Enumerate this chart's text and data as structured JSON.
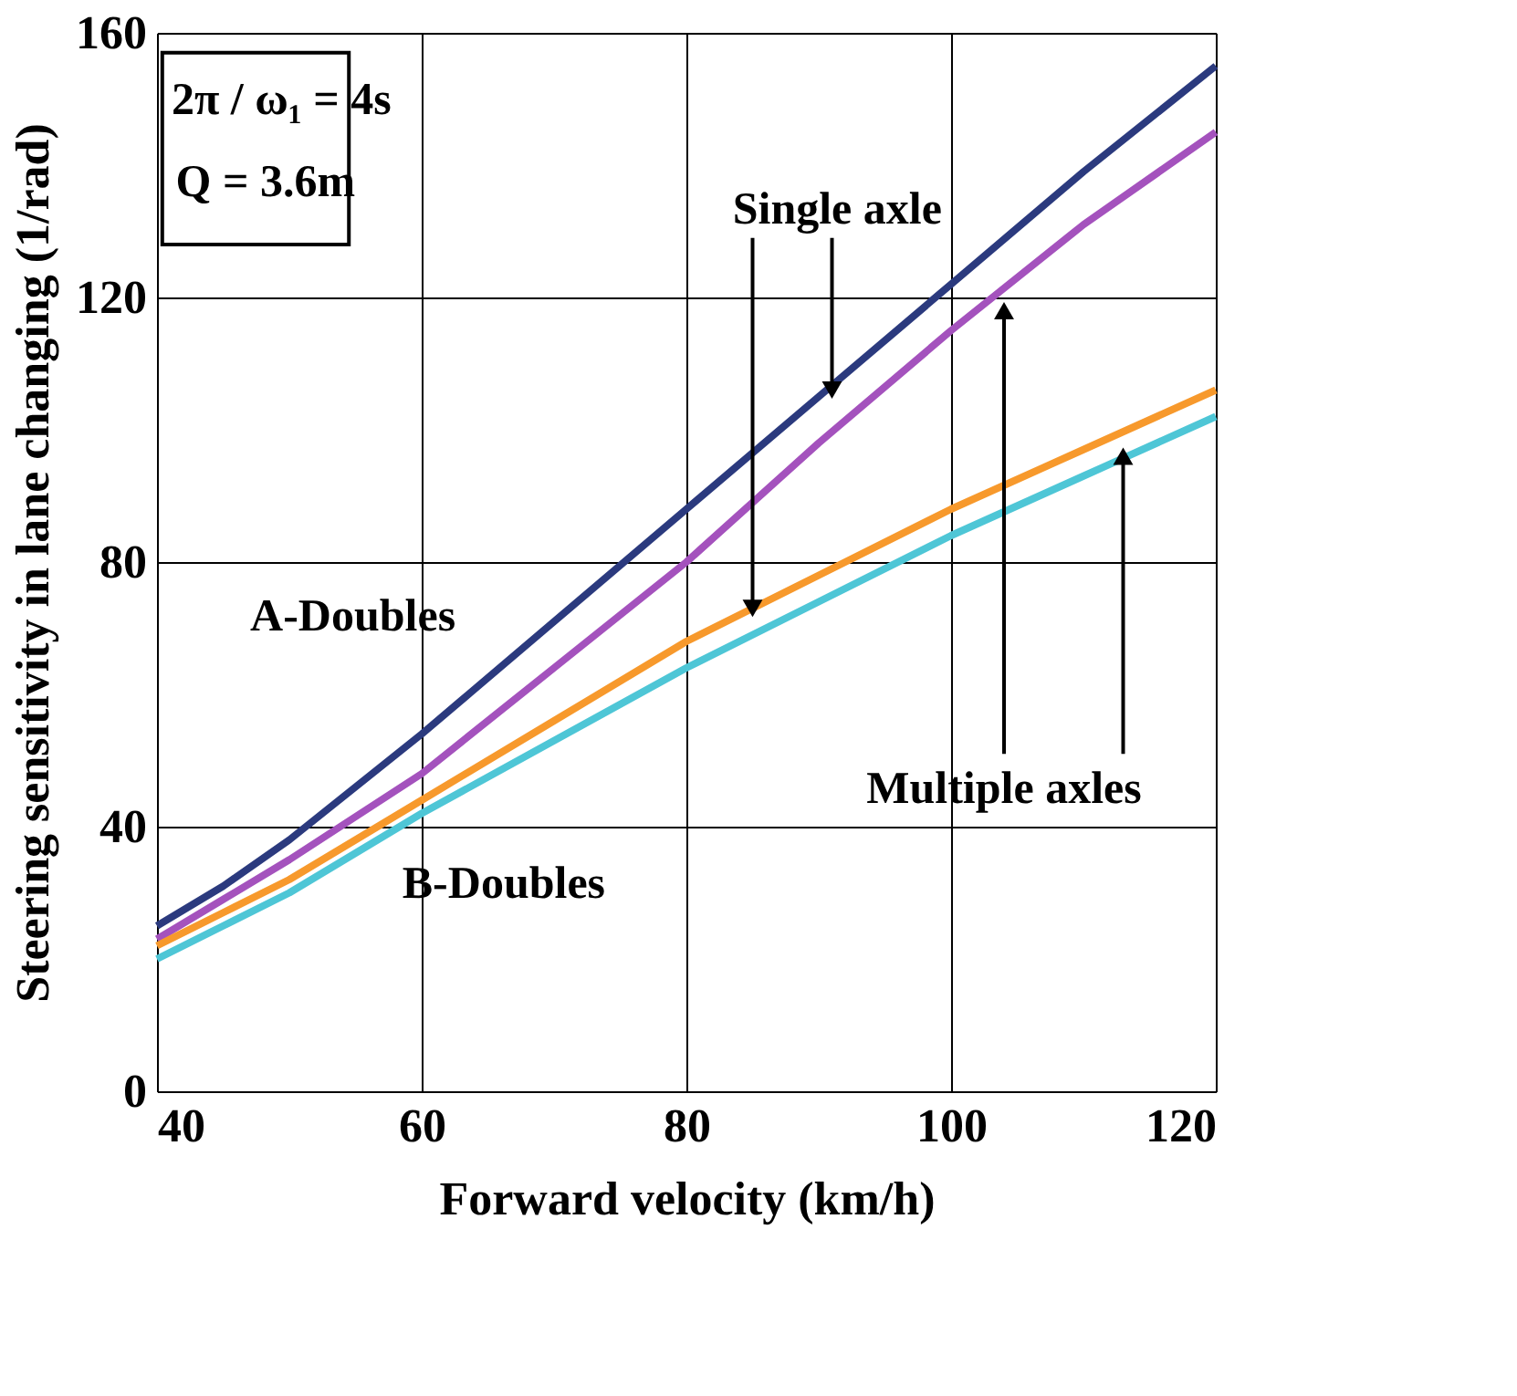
{
  "chart_data": {
    "type": "line",
    "xlabel": "Forward velocity (km/h)",
    "ylabel": "Steering sensitivity in lane changing (1/rad)",
    "x": [
      40,
      45,
      50,
      60,
      70,
      80,
      90,
      100,
      110,
      120
    ],
    "series": [
      {
        "color": "#2b3a7e",
        "values": [
          25,
          31,
          38,
          54,
          71,
          88,
          105,
          122,
          139,
          155
        ]
      },
      {
        "color": "#a452bd",
        "values": [
          23,
          29,
          35,
          48,
          64,
          80,
          98,
          115,
          131,
          145
        ]
      },
      {
        "color": "#f7992c",
        "values": [
          22,
          27,
          32,
          44,
          56,
          68,
          78,
          88,
          97,
          106
        ]
      },
      {
        "color": "#4ec6d6",
        "values": [
          20,
          25,
          30,
          42,
          53,
          64,
          74,
          84,
          93,
          102
        ]
      }
    ],
    "xlim": [
      40,
      120
    ],
    "ylim": [
      0,
      160
    ],
    "xticks": [
      40,
      60,
      80,
      100,
      120
    ],
    "yticks": [
      0,
      40,
      80,
      120,
      160
    ],
    "grid": true,
    "legend": false,
    "marker": "none",
    "line_style": "solid",
    "annotations": [
      "2π / ω₁ = 4s",
      "Q = 3.6m",
      {
        "text": "Single axle",
        "x": 91,
        "y": 106
      },
      "A-Doubles",
      "B-Doubles",
      {
        "text": "Multiple axles",
        "x": 113,
        "y": 96
      }
    ]
  }
}
